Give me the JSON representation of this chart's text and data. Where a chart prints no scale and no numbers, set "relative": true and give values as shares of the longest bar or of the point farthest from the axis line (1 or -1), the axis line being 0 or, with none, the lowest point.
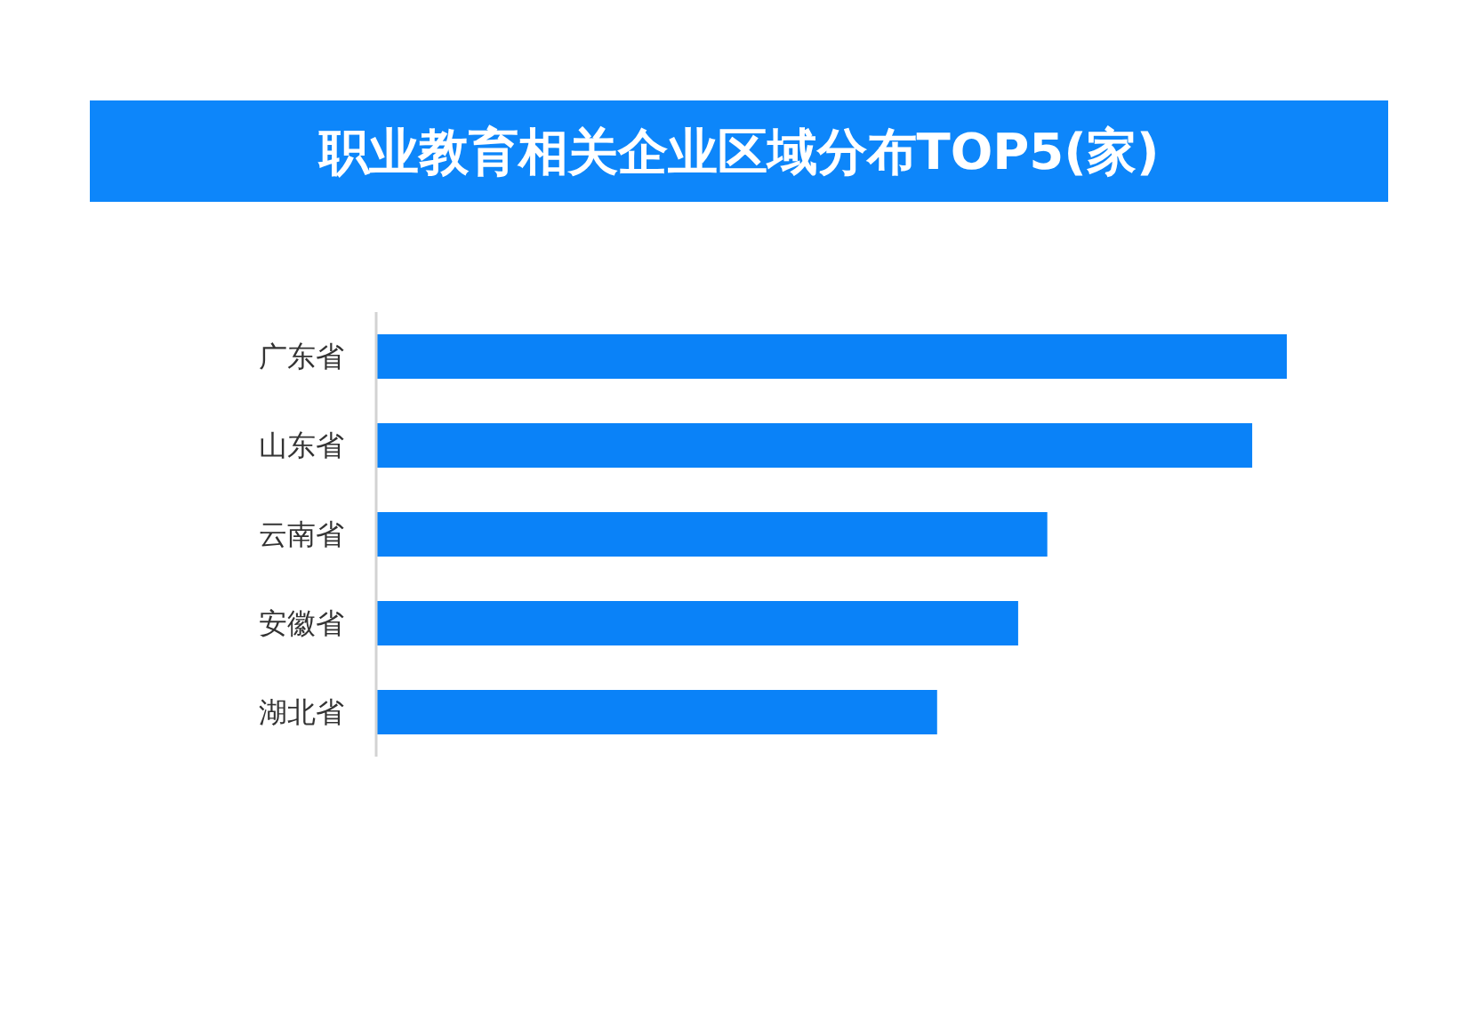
{
  "chart_data": {
    "type": "bar",
    "orientation": "horizontal",
    "relative": true,
    "title": "职业教育相关企业区域分布TOP5(家)",
    "categories": [
      "广东省",
      "山东省",
      "云南省",
      "安徽省",
      "湖北省"
    ],
    "values": [
      1,
      0.962,
      0.737,
      0.705,
      0.616
    ],
    "color": "#0a82f8",
    "grid": false
  }
}
